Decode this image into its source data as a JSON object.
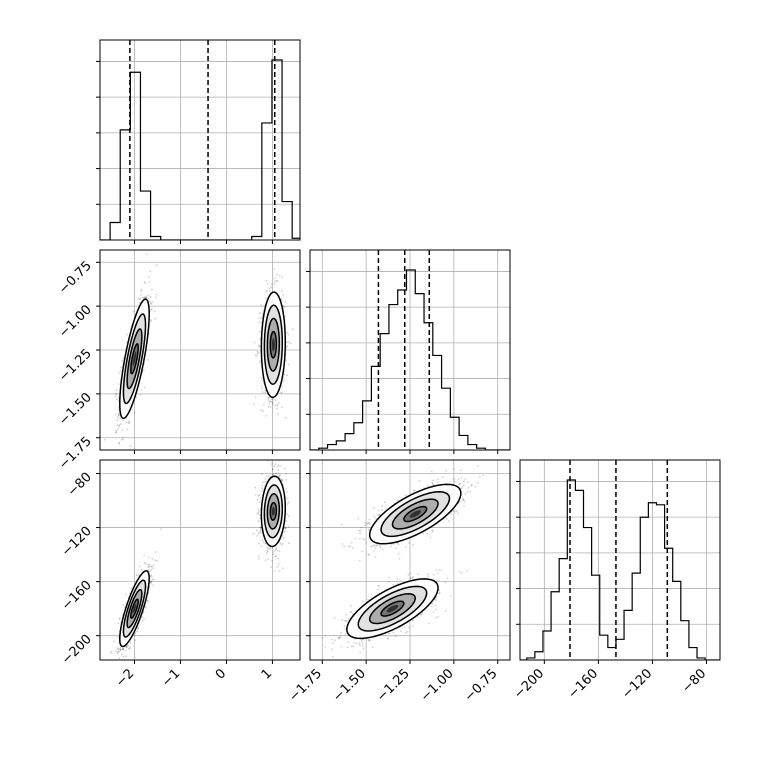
{
  "chart_data": {
    "type": "corner",
    "params": [
      "",
      "",
      ""
    ],
    "colors": {
      "ink": "#000000",
      "grid": "#b0b0b0",
      "background": "#ffffff"
    },
    "axes": [
      {
        "index": 0,
        "range": [
          -2.75,
          1.6
        ],
        "ticks": [
          -2,
          -1,
          0,
          1
        ],
        "tick_labels": [
          "−2",
          "−1",
          "0",
          "1"
        ]
      },
      {
        "index": 1,
        "range": [
          -1.82,
          -0.68
        ],
        "ticks": [
          -1.75,
          -1.5,
          -1.25,
          -1.0,
          -0.75
        ],
        "tick_labels": [
          "−1.75",
          "−1.50",
          "−1.25",
          "−1.00",
          "−0.75"
        ]
      },
      {
        "index": 2,
        "range": [
          -218,
          -70
        ],
        "ticks": [
          -200,
          -160,
          -120,
          -80
        ],
        "tick_labels": [
          "−200",
          "−160",
          "−120",
          "−80"
        ]
      }
    ],
    "marginals": [
      {
        "param": 0,
        "quantiles": [
          -2.1,
          -0.4,
          1.05
        ],
        "bin_edges": [
          -2.75,
          -2.53,
          -2.31,
          -2.09,
          -1.87,
          -1.65,
          -1.43,
          -1.21,
          -0.99,
          -0.77,
          -0.55,
          -0.33,
          -0.11,
          0.11,
          0.33,
          0.55,
          0.77,
          0.99,
          1.21,
          1.43,
          1.6
        ],
        "counts": [
          0,
          10,
          63,
          96,
          28,
          2,
          0,
          0,
          0,
          0,
          0,
          0,
          0,
          0,
          0,
          2,
          67,
          103,
          22,
          1
        ]
      },
      {
        "param": 1,
        "quantiles": [
          -1.43,
          -1.28,
          -1.14
        ],
        "bin_edges": [
          -1.82,
          -1.77,
          -1.72,
          -1.67,
          -1.62,
          -1.57,
          -1.52,
          -1.47,
          -1.42,
          -1.37,
          -1.32,
          -1.27,
          -1.22,
          -1.17,
          -1.12,
          -1.07,
          -1.02,
          -0.97,
          -0.92,
          -0.87,
          -0.82,
          -0.77,
          -0.72,
          -0.68
        ],
        "counts": [
          0,
          1,
          3,
          5,
          9,
          15,
          27,
          46,
          64,
          80,
          88,
          99,
          86,
          70,
          52,
          34,
          18,
          8,
          3,
          1,
          0,
          0,
          0
        ]
      },
      {
        "param": 2,
        "quantiles": [
          -181,
          -147,
          -109
        ],
        "bin_edges": [
          -218,
          -213,
          -207,
          -201,
          -195,
          -189,
          -183,
          -177,
          -171,
          -165,
          -159,
          -153,
          -147,
          -141,
          -135,
          -129,
          -123,
          -117,
          -111,
          -105,
          -99,
          -93,
          -87,
          -81,
          -75,
          -70
        ],
        "counts": [
          0,
          1,
          4,
          14,
          33,
          49,
          87,
          82,
          64,
          41,
          12,
          6,
          10,
          24,
          42,
          69,
          76,
          75,
          54,
          38,
          19,
          6,
          1,
          0,
          0
        ]
      }
    ],
    "pairs": [
      {
        "x_param": 0,
        "y_param": 1,
        "modes": [
          {
            "cx": -2.0,
            "cy": -1.3,
            "sx": 0.16,
            "sy": 0.17,
            "rho": 0.75,
            "weight": 0.5
          },
          {
            "cx": 1.02,
            "cy": -1.22,
            "sx": 0.13,
            "sy": 0.15,
            "rho": 0.05,
            "weight": 0.5
          }
        ]
      },
      {
        "x_param": 0,
        "y_param": 2,
        "modes": [
          {
            "cx": -2.0,
            "cy": -180,
            "sx": 0.16,
            "sy": 14,
            "rho": 0.8,
            "weight": 0.5
          },
          {
            "cx": 1.02,
            "cy": -108,
            "sx": 0.13,
            "sy": 13,
            "rho": 0.1,
            "weight": 0.5
          }
        ]
      },
      {
        "x_param": 1,
        "y_param": 2,
        "modes": [
          {
            "cx": -1.35,
            "cy": -180,
            "sx": 0.13,
            "sy": 11,
            "rho": 0.7,
            "weight": 0.5
          },
          {
            "cx": -1.22,
            "cy": -110,
            "sx": 0.13,
            "sy": 11,
            "rho": 0.7,
            "weight": 0.5
          }
        ]
      }
    ],
    "contour_levels_sigma": [
      0.5,
      1.0,
      1.5,
      2.0
    ],
    "contour_fill": [
      "#ffffff",
      "#e0e0e0",
      "#a8a8a8",
      "#707070",
      "#303030"
    ],
    "grid": true,
    "legend": "none"
  }
}
